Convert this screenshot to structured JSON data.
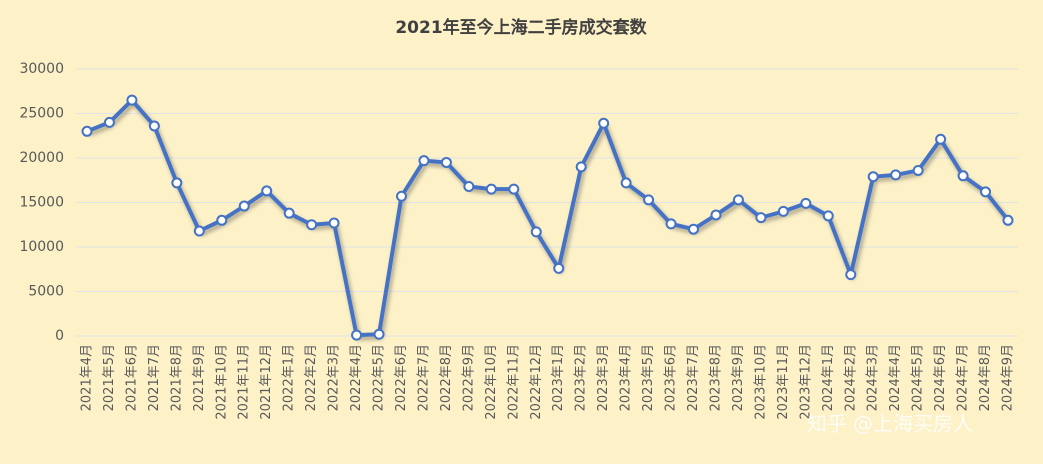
{
  "chart_data": {
    "type": "line",
    "title": "2021年至今上海二手房成交套数",
    "categories": [
      "2021年4月",
      "2021年5月",
      "2021年6月",
      "2021年7月",
      "2021年8月",
      "2021年9月",
      "2021年10月",
      "2021年11月",
      "2021年12月",
      "2022年1月",
      "2022年2月",
      "2022年3月",
      "2022年4月",
      "2022年5月",
      "2022年6月",
      "2022年7月",
      "2022年8月",
      "2022年9月",
      "2022年10月",
      "2022年11月",
      "2022年12月",
      "2023年1月",
      "2023年2月",
      "2023年3月",
      "2023年4月",
      "2023年5月",
      "2023年6月",
      "2023年7月",
      "2023年8月",
      "2023年9月",
      "2023年10月",
      "2023年11月",
      "2023年12月",
      "2024年1月",
      "2024年2月",
      "2024年3月",
      "2024年4月",
      "2024年5月",
      "2024年6月",
      "2024年7月",
      "2024年8月",
      "2024年9月"
    ],
    "series": [
      {
        "name": "成交套数",
        "color": "#4472c4",
        "values": [
          23000,
          24000,
          26500,
          23600,
          17200,
          11800,
          13000,
          14600,
          16300,
          13800,
          12500,
          12700,
          100,
          200,
          15700,
          19700,
          19500,
          16800,
          16500,
          16500,
          11700,
          7600,
          19000,
          23900,
          17200,
          15300,
          12600,
          12000,
          13600,
          15300,
          13300,
          14000,
          14900,
          13500,
          6900,
          17900,
          18100,
          18600,
          22100,
          18000,
          16200,
          13000
        ]
      }
    ],
    "ylim": [
      0,
      30000
    ],
    "yticks": [
      0,
      5000,
      10000,
      15000,
      20000,
      25000,
      30000
    ],
    "grid": true,
    "watermark": "知乎 @上海买房人"
  }
}
